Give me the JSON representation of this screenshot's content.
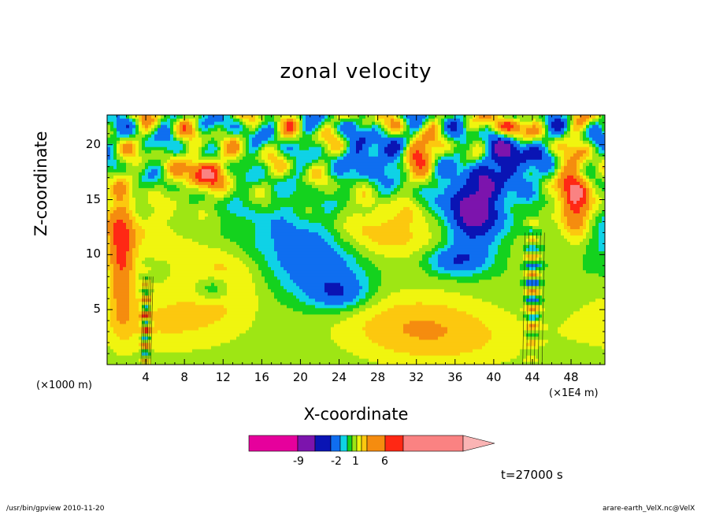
{
  "chart_data": {
    "type": "heatmap",
    "title": "zonal velocity",
    "xlabel": "X-coordinate",
    "ylabel": "Z-coordinate",
    "x_unit_left": "(×1000 m)",
    "x_unit_right": "(×1E4 m)",
    "xlim": [
      0,
      51.5
    ],
    "ylim": [
      0,
      22.7
    ],
    "x_ticks": [
      4,
      8,
      12,
      16,
      20,
      24,
      28,
      32,
      36,
      40,
      44,
      48
    ],
    "x_tick_labels": [
      "4",
      "8",
      "12",
      "16",
      "20",
      "24",
      "28",
      "32",
      "36",
      "40",
      "44",
      "48"
    ],
    "y_ticks": [
      5,
      10,
      15,
      20
    ],
    "y_tick_labels": [
      "5",
      "10",
      "15",
      "20"
    ],
    "colorbar": {
      "labels": [
        "-9",
        "-2",
        "1",
        "6"
      ],
      "colors": [
        "#e6009c",
        "#7c14ad",
        "#0a14b4",
        "#0f6ef0",
        "#0fd2e6",
        "#14d21e",
        "#9ee614",
        "#f0f50f",
        "#fcc80f",
        "#f58c0f",
        "#ff2814",
        "#fa8282",
        "#fab4b4"
      ]
    },
    "features": [
      {
        "name": "positive band",
        "x": [
          6,
          30
        ],
        "z": [
          2,
          8
        ],
        "value": 1
      },
      {
        "name": "negative core",
        "x": [
          34,
          42
        ],
        "z": [
          10,
          17
        ],
        "value": -9
      },
      {
        "name": "positive core",
        "x": [
          8,
          12
        ],
        "z": [
          16,
          19
        ],
        "value": 6
      },
      {
        "name": "positive core",
        "x": [
          30,
          34
        ],
        "z": [
          18,
          20
        ],
        "value": 6
      },
      {
        "name": "positive core",
        "x": [
          46,
          50
        ],
        "z": [
          12,
          19
        ],
        "value": 6
      },
      {
        "name": "mountain wave column",
        "x": [
          3.5,
          4.5
        ],
        "z": [
          0,
          8
        ],
        "value": -2
      },
      {
        "name": "mountain wave column",
        "x": [
          43,
          45
        ],
        "z": [
          0,
          12
        ],
        "value": -2
      }
    ]
  },
  "time_label": "t=27000 s",
  "footer_left": "/usr/bin/gpview   2010-11-20",
  "footer_right": "arare-earth_VelX.nc@VelX"
}
